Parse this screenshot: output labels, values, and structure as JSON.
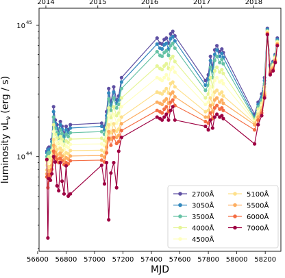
{
  "chart_data": {
    "type": "line",
    "xlabel": "MJD",
    "ylabel": "luminosity νL",
    "ylabel_sub": "ν",
    "ylabel_unit": "(erg / s)",
    "y_scale": "log",
    "xlim": [
      56610,
      58310
    ],
    "ylim": [
      1.9e+43,
      1.35e+45
    ],
    "x_ticks": [
      56600,
      56800,
      57000,
      57200,
      57400,
      57600,
      57800,
      58000,
      58200
    ],
    "y_ticks": [
      {
        "value": 1e+44,
        "label": "10",
        "exp": "44"
      },
      {
        "value": 1e+45,
        "label": "10",
        "exp": "45"
      }
    ],
    "top_axis_ticks": [
      {
        "label": "2014",
        "mjd": 56658
      },
      {
        "label": "2015",
        "mjd": 57023
      },
      {
        "label": "2016",
        "mjd": 57388
      },
      {
        "label": "2017",
        "mjd": 57754
      },
      {
        "label": "2018",
        "mjd": 58119
      }
    ],
    "grid": false,
    "legend_position": "lower-right",
    "x": [
      56665,
      56672,
      56680,
      56690,
      56700,
      56712,
      56724,
      56736,
      56748,
      56760,
      56772,
      56786,
      56800,
      56815,
      56830,
      57050,
      57070,
      57085,
      57100,
      57115,
      57135,
      57155,
      57170,
      57190,
      57440,
      57460,
      57475,
      57490,
      57505,
      57520,
      57535,
      57550,
      57565,
      57780,
      57800,
      57815,
      57830,
      57845,
      57860,
      57880,
      57895,
      57905,
      58125,
      58150,
      58175,
      58195,
      58215,
      58235,
      58255,
      58270,
      58285
    ],
    "series": [
      {
        "name": "2700Å",
        "color": "#5e4fa2",
        "values": [
          1.1e+44,
          1.15e+44,
          1.18e+44,
          1.15e+44,
          1.35e+44,
          2.4e+44,
          1.9e+44,
          1.75e+44,
          1.55e+44,
          1.85e+44,
          1.7e+44,
          1.5e+44,
          1.7e+44,
          1.6e+44,
          1.75e+44,
          1.8e+44,
          1.7e+44,
          2.2e+44,
          3.3e+44,
          2.6e+44,
          3.4e+44,
          2.7e+44,
          2.9e+44,
          4e+44,
          8e+44,
          7.3e+44,
          7.2e+44,
          7.8e+44,
          8e+44,
          7.3e+44,
          8.6e+44,
          9e+44,
          8.3e+44,
          3.8e+44,
          4.2e+44,
          5.8e+44,
          4.8e+44,
          6.5e+44,
          7e+44,
          6.3e+44,
          6.6e+44,
          6.2e+44,
          2.1e+44,
          2.6e+44,
          3e+44,
          4e+44,
          9.5e+44,
          5e+44,
          5.3e+44,
          6e+44,
          8e+44
        ]
      },
      {
        "name": "3050Å",
        "color": "#3288bd",
        "values": [
          1.07e+44,
          1.12e+44,
          1.14e+44,
          1.12e+44,
          1.3e+44,
          2.2e+44,
          1.8e+44,
          1.65e+44,
          1.48e+44,
          1.75e+44,
          1.62e+44,
          1.42e+44,
          1.6e+44,
          1.52e+44,
          1.65e+44,
          1.7e+44,
          1.6e+44,
          2.05e+44,
          3.05e+44,
          2.45e+44,
          3.1e+44,
          2.55e+44,
          2.7e+44,
          3.7e+44,
          7.2e+44,
          6.7e+44,
          6.6e+44,
          7.1e+44,
          7.3e+44,
          6.6e+44,
          7.9e+44,
          8.2e+44,
          7.6e+44,
          3.5e+44,
          3.9e+44,
          5.4e+44,
          4.5e+44,
          6e+44,
          6.5e+44,
          5.8e+44,
          6.1e+44,
          5.7e+44,
          2e+44,
          2.5e+44,
          2.85e+44,
          3.8e+44,
          9.3e+44,
          4.9e+44,
          5.2e+44,
          5.9e+44,
          7.8e+44
        ]
      },
      {
        "name": "3500Å",
        "color": "#66c2a5",
        "values": [
          1e+44,
          1.05e+44,
          1.08e+44,
          1.06e+44,
          1.22e+44,
          2e+44,
          1.65e+44,
          1.52e+44,
          1.38e+44,
          1.6e+44,
          1.5e+44,
          1.32e+44,
          1.48e+44,
          1.42e+44,
          1.52e+44,
          1.55e+44,
          1.48e+44,
          1.88e+44,
          2.75e+44,
          2.25e+44,
          2.8e+44,
          2.35e+44,
          2.5e+44,
          3.3e+44,
          6.3e+44,
          5.9e+44,
          5.8e+44,
          6.2e+44,
          6.4e+44,
          5.9e+44,
          7e+44,
          7.3e+44,
          6.7e+44,
          3.2e+44,
          3.5e+44,
          4.8e+44,
          4e+44,
          5.4e+44,
          5.8e+44,
          5.2e+44,
          5.5e+44,
          5.1e+44,
          1.95e+44,
          2.4e+44,
          2.7e+44,
          3.6e+44,
          9.1e+44,
          4.8e+44,
          5.1e+44,
          5.8e+44,
          7.6e+44
        ]
      },
      {
        "name": "4000Å",
        "color": "#e6f598",
        "values": [
          9.3e+43,
          9.7e+43,
          1e+44,
          9.8e+43,
          1.12e+44,
          1.75e+44,
          1.48e+44,
          1.38e+44,
          1.26e+44,
          1.42e+44,
          1.35e+44,
          1.22e+44,
          1.32e+44,
          1.28e+44,
          1.36e+44,
          1.38e+44,
          1.33e+44,
          1.66e+44,
          2.35e+44,
          1.98e+44,
          2.4e+44,
          2.05e+44,
          2.15e+44,
          2.8e+44,
          4.9e+44,
          4.7e+44,
          4.6e+44,
          4.9e+44,
          5.1e+44,
          4.7e+44,
          5.6e+44,
          5.8e+44,
          5.3e+44,
          2.8e+44,
          3e+44,
          4e+44,
          3.4e+44,
          4.5e+44,
          4.8e+44,
          4.4e+44,
          4.6e+44,
          4.3e+44,
          1.9e+44,
          2.3e+44,
          2.55e+44,
          3.4e+44,
          9e+44,
          4.7e+44,
          5e+44,
          5.7e+44,
          7.5e+44
        ]
      },
      {
        "name": "4500Å",
        "color": "#ffffbf",
        "values": [
          8.6e+43,
          9e+43,
          9.3e+43,
          9.1e+43,
          1.03e+44,
          1.55e+44,
          1.34e+44,
          1.26e+44,
          1.16e+44,
          1.3e+44,
          1.24e+44,
          1.13e+44,
          1.2e+44,
          1.17e+44,
          1.24e+44,
          1.25e+44,
          1.21e+44,
          1.48e+44,
          2.05e+44,
          1.75e+44,
          2.1e+44,
          1.8e+44,
          1.9e+44,
          2.4e+44,
          4e+44,
          3.9e+44,
          3.8e+44,
          4e+44,
          4.2e+44,
          3.9e+44,
          4.6e+44,
          4.8e+44,
          4.4e+44,
          2.5e+44,
          2.6e+44,
          3.4e+44,
          2.95e+44,
          3.8e+44,
          4e+44,
          3.7e+44,
          3.8e+44,
          3.6e+44,
          1.85e+44,
          2.2e+44,
          2.45e+44,
          3.25e+44,
          8.9e+44,
          4.6e+44,
          4.9e+44,
          5.6e+44,
          7.4e+44
        ]
      },
      {
        "name": "5100Å",
        "color": "#fee08b",
        "values": [
          7.9e+43,
          8e+43,
          8.4e+43,
          8.3e+43,
          9.3e+43,
          1.35e+44,
          1.19e+44,
          1.13e+44,
          1.05e+44,
          1.16e+44,
          1.11e+44,
          1.02e+44,
          1.07e+44,
          1.05e+44,
          1.11e+44,
          1.12e+44,
          1.08e+44,
          1.3e+44,
          1.75e+44,
          1.52e+44,
          1.78e+44,
          1.56e+44,
          1.62e+44,
          2e+44,
          3.1e+44,
          3.05e+44,
          3e+44,
          3.15e+44,
          3.3e+44,
          3.05e+44,
          3.6e+44,
          3.7e+44,
          3.4e+44,
          2.2e+44,
          2.25e+44,
          2.8e+44,
          2.5e+44,
          3.1e+44,
          3.2e+44,
          3e+44,
          3.1e+44,
          2.9e+44,
          1.8e+44,
          2.1e+44,
          2.35e+44,
          3.1e+44,
          8.8e+44,
          4.5e+44,
          4.8e+44,
          5.5e+44,
          7.3e+44
        ]
      },
      {
        "name": "5500Å",
        "color": "#fdae61",
        "values": [
          7.4e+43,
          7e+43,
          7.8e+43,
          7.7e+43,
          8.6e+43,
          1.22e+44,
          1.08e+44,
          1.03e+44,
          9.7e+43,
          1.06e+44,
          1.01e+44,
          9.4e+43,
          9.8e+43,
          9.6e+43,
          1.01e+44,
          1.02e+44,
          9.9e+43,
          1.18e+44,
          1.55e+44,
          1.36e+44,
          1.58e+44,
          1.4e+44,
          1.45e+44,
          1.78e+44,
          2.6e+44,
          2.55e+44,
          2.5e+44,
          2.65e+44,
          2.75e+44,
          2.55e+44,
          3e+44,
          3.1e+44,
          2.85e+44,
          2e+44,
          2e+44,
          2.45e+44,
          2.2e+44,
          2.7e+44,
          2.8e+44,
          2.6e+44,
          2.7e+44,
          2.55e+44,
          1.75e+44,
          2e+44,
          2.25e+44,
          3e+44,
          8.7e+44,
          4.4e+44,
          4.7e+44,
          5.4e+44,
          7.2e+44
        ]
      },
      {
        "name": "6000Å",
        "color": "#f46d43",
        "values": [
          7e+43,
          5.8e+43,
          7.3e+43,
          7.2e+43,
          8e+43,
          1.1e+44,
          9.9e+43,
          9.5e+43,
          9e+43,
          9.7e+43,
          9.3e+43,
          8.7e+43,
          9e+43,
          8.8e+43,
          9.3e+43,
          9.4e+43,
          9.1e+43,
          1.07e+44,
          1.38e+44,
          1.22e+44,
          1.4e+44,
          1.26e+44,
          1.3e+44,
          1.58e+44,
          2.25e+44,
          2.2e+44,
          2.15e+44,
          2.3e+44,
          2.4e+44,
          2.2e+44,
          2.6e+44,
          2.7e+44,
          2.45e+44,
          1.85e+44,
          1.8e+44,
          2.15e+44,
          1.95e+44,
          2.35e+44,
          2.45e+44,
          2.3e+44,
          2.35e+44,
          2.25e+44,
          1.6e+44,
          1.9e+44,
          2.15e+44,
          2.9e+44,
          8.6e+44,
          4.3e+44,
          4.6e+44,
          5.3e+44,
          7.1e+44
        ]
      },
      {
        "name": "7000Å",
        "color": "#9e0142",
        "values": [
          9.5e+43,
          2.4e+43,
          6.8e+43,
          6.6e+43,
          7.4e+43,
          1e+44,
          9.1e+43,
          6e+43,
          5.5e+43,
          9e+43,
          6.5e+43,
          5.2e+43,
          8.5e+43,
          5e+43,
          5.2e+43,
          8.6e+43,
          6.2e+43,
          9e+43,
          3.3e+43,
          7.5e+43,
          9e+43,
          5.8e+43,
          1.1e+44,
          1.4e+44,
          2e+44,
          1.95e+44,
          1.9e+44,
          2e+44,
          2.1e+44,
          1.9e+44,
          2.25e+44,
          2.4e+44,
          1.9e+44,
          1.7e+44,
          1.6e+44,
          1.9e+44,
          1.65e+44,
          2e+44,
          2.1e+44,
          2e+44,
          2.05e+44,
          1.95e+44,
          1.25e+44,
          1.75e+44,
          2.05e+44,
          2.8e+44,
          8.5e+44,
          4.2e+44,
          4.5e+44,
          5.2e+44,
          7e+44
        ]
      }
    ]
  }
}
